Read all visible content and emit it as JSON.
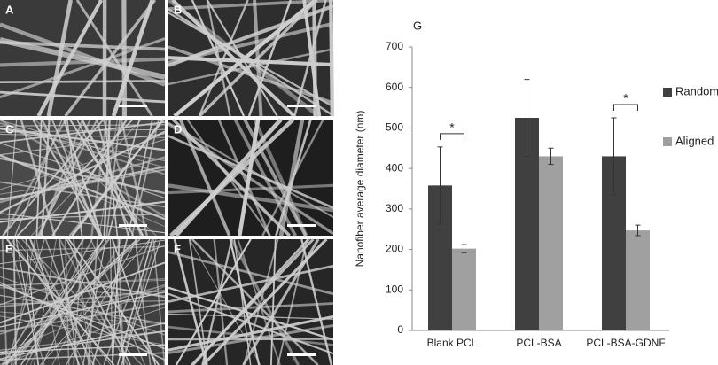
{
  "panels": [
    "A",
    "B",
    "C",
    "D",
    "E",
    "F"
  ],
  "chart_data": {
    "type": "bar",
    "title": "G",
    "y_label": "Nanofiber average diameter (nm)",
    "categories": [
      "Blank PCL",
      "PCL-BSA",
      "PCL-BSA-GDNF"
    ],
    "series": [
      {
        "name": "Random",
        "color": "#404040",
        "values": [
          358,
          525,
          430
        ],
        "errors": [
          95,
          95,
          95
        ]
      },
      {
        "name": "Aligned",
        "color": "#a0a0a0",
        "values": [
          202,
          430,
          247
        ],
        "errors": [
          10,
          20,
          13
        ]
      }
    ],
    "annotations": [
      {
        "label": "*",
        "category": "Blank PCL"
      },
      {
        "label": "*",
        "category": "PCL-BSA-GDNF"
      }
    ],
    "ylim": [
      0,
      700
    ],
    "yticks": [
      0,
      100,
      200,
      300,
      400,
      500,
      600,
      700
    ],
    "grid": false,
    "legend": "right"
  }
}
